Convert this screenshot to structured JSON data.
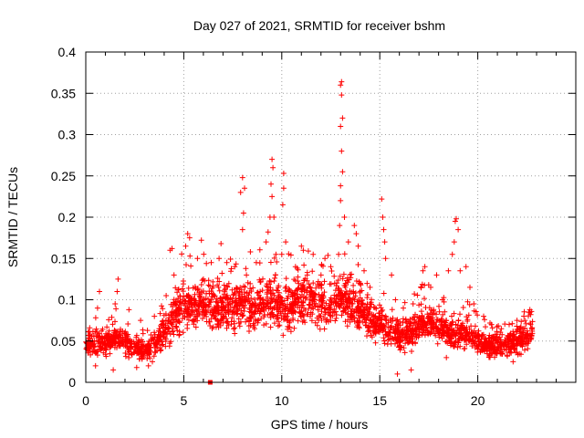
{
  "chart_data": {
    "type": "scatter",
    "title": "Day 027 of 2021, SRMTID for receiver bshm",
    "xlabel": "GPS time / hours",
    "ylabel": "SRMTID / TECUs",
    "xlim": [
      0,
      25
    ],
    "ylim": [
      0,
      0.4
    ],
    "x_ticks": [
      0,
      5,
      10,
      15,
      20
    ],
    "y_ticks": [
      0,
      0.05,
      0.1,
      0.15,
      0.2,
      0.25,
      0.3,
      0.35,
      0.4
    ],
    "x_tick_labels": [
      "0",
      "5",
      "10",
      "15",
      "20"
    ],
    "y_tick_labels": [
      "0",
      "0.05",
      "0.1",
      "0.15",
      "0.2",
      "0.25",
      "0.3",
      "0.35",
      "0.4"
    ],
    "grid": true,
    "marker": "+",
    "color": "#ff0000",
    "profile": [
      [
        0.0,
        0.045
      ],
      [
        0.5,
        0.05
      ],
      [
        1.0,
        0.048
      ],
      [
        1.5,
        0.055
      ],
      [
        2.0,
        0.05
      ],
      [
        2.5,
        0.04
      ],
      [
        3.0,
        0.038
      ],
      [
        3.5,
        0.045
      ],
      [
        4.0,
        0.06
      ],
      [
        4.5,
        0.08
      ],
      [
        5.0,
        0.095
      ],
      [
        5.5,
        0.09
      ],
      [
        6.0,
        0.095
      ],
      [
        6.5,
        0.09
      ],
      [
        7.0,
        0.09
      ],
      [
        7.5,
        0.09
      ],
      [
        8.0,
        0.095
      ],
      [
        8.5,
        0.095
      ],
      [
        9.0,
        0.095
      ],
      [
        9.5,
        0.095
      ],
      [
        10.0,
        0.09
      ],
      [
        10.5,
        0.095
      ],
      [
        11.0,
        0.1
      ],
      [
        11.5,
        0.1
      ],
      [
        12.0,
        0.095
      ],
      [
        12.5,
        0.09
      ],
      [
        13.0,
        0.1
      ],
      [
        13.5,
        0.1
      ],
      [
        14.0,
        0.085
      ],
      [
        14.5,
        0.075
      ],
      [
        15.0,
        0.07
      ],
      [
        15.5,
        0.065
      ],
      [
        16.0,
        0.055
      ],
      [
        16.5,
        0.06
      ],
      [
        17.0,
        0.07
      ],
      [
        17.5,
        0.07
      ],
      [
        18.0,
        0.065
      ],
      [
        18.5,
        0.06
      ],
      [
        19.0,
        0.06
      ],
      [
        19.5,
        0.06
      ],
      [
        20.0,
        0.05
      ],
      [
        20.5,
        0.045
      ],
      [
        21.0,
        0.045
      ],
      [
        21.5,
        0.045
      ],
      [
        22.0,
        0.05
      ],
      [
        22.5,
        0.055
      ],
      [
        22.8,
        0.06
      ]
    ],
    "highlights": [
      [
        0.2,
        0.066
      ],
      [
        0.6,
        0.09
      ],
      [
        0.7,
        0.11
      ],
      [
        1.5,
        0.095
      ],
      [
        1.6,
        0.11
      ],
      [
        1.65,
        0.125
      ],
      [
        2.2,
        0.088
      ],
      [
        2.8,
        0.075
      ],
      [
        3.5,
        0.08
      ],
      [
        4.1,
        0.105
      ],
      [
        4.3,
        0.16
      ],
      [
        4.4,
        0.162
      ],
      [
        4.5,
        0.13
      ],
      [
        5.1,
        0.165
      ],
      [
        5.2,
        0.18
      ],
      [
        5.3,
        0.175
      ],
      [
        5.7,
        0.15
      ],
      [
        5.9,
        0.172
      ],
      [
        6.0,
        0.125
      ],
      [
        6.4,
        0.145
      ],
      [
        6.8,
        0.15
      ],
      [
        6.9,
        0.168
      ],
      [
        7.6,
        0.14
      ],
      [
        7.9,
        0.23
      ],
      [
        8.0,
        0.248
      ],
      [
        8.1,
        0.235
      ],
      [
        8.05,
        0.205
      ],
      [
        8.0,
        0.185
      ],
      [
        8.2,
        0.13
      ],
      [
        8.4,
        0.158
      ],
      [
        8.7,
        0.145
      ],
      [
        9.2,
        0.17
      ],
      [
        9.3,
        0.182
      ],
      [
        9.4,
        0.2
      ],
      [
        9.45,
        0.24
      ],
      [
        9.5,
        0.27
      ],
      [
        9.55,
        0.26
      ],
      [
        9.5,
        0.225
      ],
      [
        9.6,
        0.2
      ],
      [
        9.7,
        0.155
      ],
      [
        10.0,
        0.155
      ],
      [
        10.05,
        0.215
      ],
      [
        10.1,
        0.235
      ],
      [
        10.1,
        0.253
      ],
      [
        10.2,
        0.17
      ],
      [
        10.7,
        0.14
      ],
      [
        11.0,
        0.165
      ],
      [
        11.1,
        0.16
      ],
      [
        11.3,
        0.13
      ],
      [
        11.6,
        0.155
      ],
      [
        12.0,
        0.13
      ],
      [
        12.2,
        0.15
      ],
      [
        12.5,
        0.14
      ],
      [
        12.7,
        0.12
      ],
      [
        12.9,
        0.155
      ],
      [
        12.95,
        0.19
      ],
      [
        13.0,
        0.22
      ],
      [
        13.0,
        0.238
      ],
      [
        13.05,
        0.28
      ],
      [
        13.0,
        0.31
      ],
      [
        13.1,
        0.32
      ],
      [
        13.05,
        0.348
      ],
      [
        13.0,
        0.36
      ],
      [
        13.05,
        0.364
      ],
      [
        13.1,
        0.255
      ],
      [
        13.2,
        0.2
      ],
      [
        13.4,
        0.17
      ],
      [
        13.7,
        0.19
      ],
      [
        13.8,
        0.18
      ],
      [
        13.9,
        0.165
      ],
      [
        14.0,
        0.12
      ],
      [
        14.2,
        0.135
      ],
      [
        14.5,
        0.115
      ],
      [
        15.1,
        0.222
      ],
      [
        15.15,
        0.2
      ],
      [
        15.2,
        0.185
      ],
      [
        15.25,
        0.17
      ],
      [
        15.3,
        0.15
      ],
      [
        15.6,
        0.13
      ],
      [
        15.8,
        0.1
      ],
      [
        16.2,
        0.09
      ],
      [
        16.7,
        0.095
      ],
      [
        17.2,
        0.135
      ],
      [
        17.3,
        0.14
      ],
      [
        17.6,
        0.115
      ],
      [
        17.9,
        0.13
      ],
      [
        18.2,
        0.1
      ],
      [
        18.5,
        0.135
      ],
      [
        18.7,
        0.155
      ],
      [
        18.8,
        0.17
      ],
      [
        18.85,
        0.195
      ],
      [
        18.9,
        0.198
      ],
      [
        19.0,
        0.185
      ],
      [
        19.1,
        0.135
      ],
      [
        19.4,
        0.14
      ],
      [
        19.6,
        0.115
      ],
      [
        19.8,
        0.095
      ],
      [
        20.3,
        0.08
      ],
      [
        20.7,
        0.07
      ],
      [
        21.2,
        0.065
      ],
      [
        21.6,
        0.07
      ],
      [
        22.0,
        0.075
      ],
      [
        22.4,
        0.075
      ],
      [
        22.6,
        0.085
      ],
      [
        22.7,
        0.082
      ],
      [
        0.5,
        0.02
      ],
      [
        1.4,
        0.015
      ],
      [
        2.6,
        0.018
      ],
      [
        3.2,
        0.02
      ],
      [
        3.4,
        0.025
      ],
      [
        15.9,
        0.01
      ],
      [
        16.6,
        0.015
      ],
      [
        18.4,
        0.03
      ],
      [
        21.8,
        0.025
      ]
    ],
    "outliers": [
      [
        6.35,
        0.0
      ]
    ],
    "count": 2600,
    "spread": 0.3,
    "seed": 27
  }
}
